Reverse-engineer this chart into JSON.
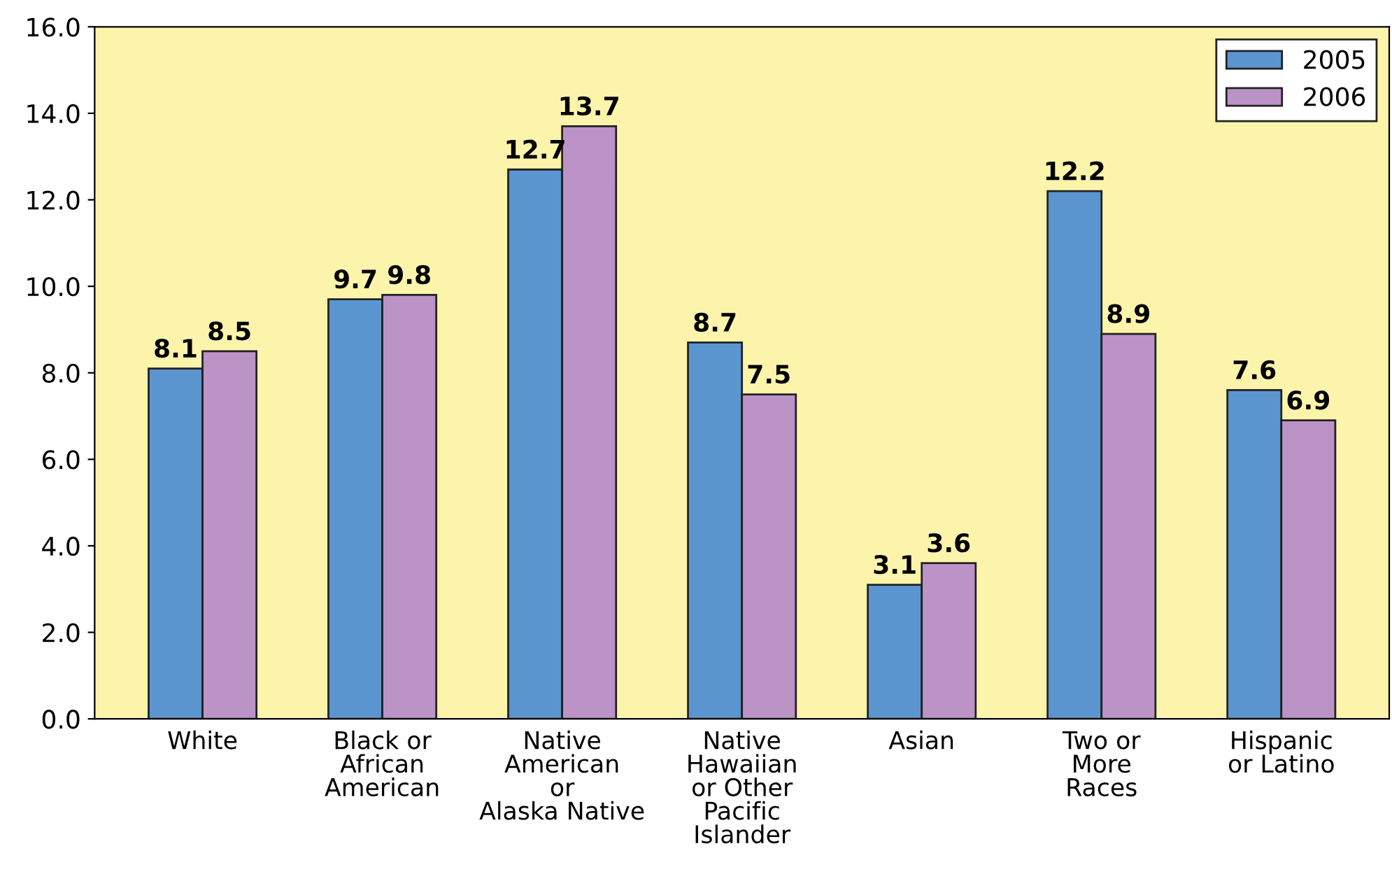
{
  "chart_data": {
    "type": "bar",
    "categories": [
      "White",
      "Black or\nAfrican\nAmerican",
      "Native\nAmerican\nor\nAlaska Native",
      "Native\nHawaiian\nor Other\nPacific\nIslander",
      "Asian",
      "Two or\nMore\nRaces",
      "Hispanic\nor Latino"
    ],
    "series": [
      {
        "name": "2005",
        "color": "#5b95d0",
        "values": [
          8.1,
          9.7,
          12.7,
          8.7,
          3.1,
          12.2,
          7.6
        ]
      },
      {
        "name": "2006",
        "color": "#bb93c6",
        "values": [
          8.5,
          9.8,
          13.7,
          7.5,
          3.6,
          8.9,
          6.9
        ]
      }
    ],
    "ylim": [
      0,
      16
    ],
    "yticks": [
      {
        "value": 0,
        "label": "0.0"
      },
      {
        "value": 2,
        "label": "2.0"
      },
      {
        "value": 4,
        "label": "4.0"
      },
      {
        "value": 6,
        "label": "6.0"
      },
      {
        "value": 8,
        "label": "8.0"
      },
      {
        "value": 10,
        "label": "10.0"
      },
      {
        "value": 12,
        "label": "12.0"
      },
      {
        "value": 14,
        "label": "14.0"
      },
      {
        "value": 16,
        "label": "16.0"
      }
    ],
    "data_labels": true,
    "grid": false,
    "legend": "top right"
  }
}
